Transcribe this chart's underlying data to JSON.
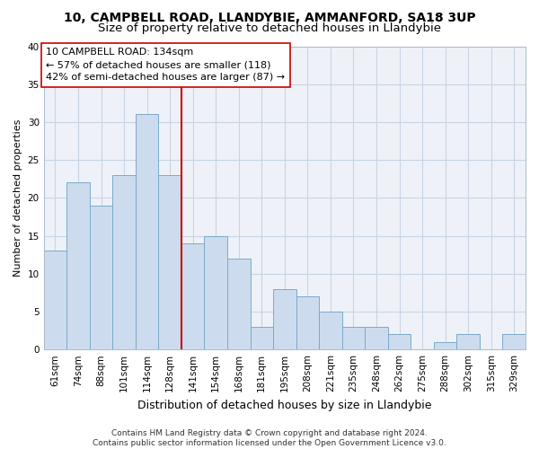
{
  "title1": "10, CAMPBELL ROAD, LLANDYBIE, AMMANFORD, SA18 3UP",
  "title2": "Size of property relative to detached houses in Llandybie",
  "xlabel": "Distribution of detached houses by size in Llandybie",
  "ylabel": "Number of detached properties",
  "footnote": "Contains HM Land Registry data © Crown copyright and database right 2024.\nContains public sector information licensed under the Open Government Licence v3.0.",
  "categories": [
    "61sqm",
    "74sqm",
    "88sqm",
    "101sqm",
    "114sqm",
    "128sqm",
    "141sqm",
    "154sqm",
    "168sqm",
    "181sqm",
    "195sqm",
    "208sqm",
    "221sqm",
    "235sqm",
    "248sqm",
    "262sqm",
    "275sqm",
    "288sqm",
    "302sqm",
    "315sqm",
    "329sqm"
  ],
  "values": [
    13,
    22,
    19,
    23,
    31,
    23,
    14,
    15,
    12,
    3,
    8,
    7,
    5,
    3,
    3,
    2,
    0,
    1,
    2,
    0,
    2
  ],
  "bar_color": "#ccdcee",
  "bar_edge_color": "#7aaac8",
  "vline_x": 5.5,
  "vline_color": "#cc0000",
  "annotation_text": "10 CAMPBELL ROAD: 134sqm\n← 57% of detached houses are smaller (118)\n42% of semi-detached houses are larger (87) →",
  "ylim": [
    0,
    40
  ],
  "yticks": [
    0,
    5,
    10,
    15,
    20,
    25,
    30,
    35,
    40
  ],
  "grid_color": "#c8d4e4",
  "bg_color": "#eef2f8",
  "title1_fontsize": 10,
  "title2_fontsize": 9.5,
  "xlabel_fontsize": 9,
  "ylabel_fontsize": 8,
  "tick_fontsize": 7.5,
  "annotation_fontsize": 8,
  "footnote_fontsize": 6.5
}
